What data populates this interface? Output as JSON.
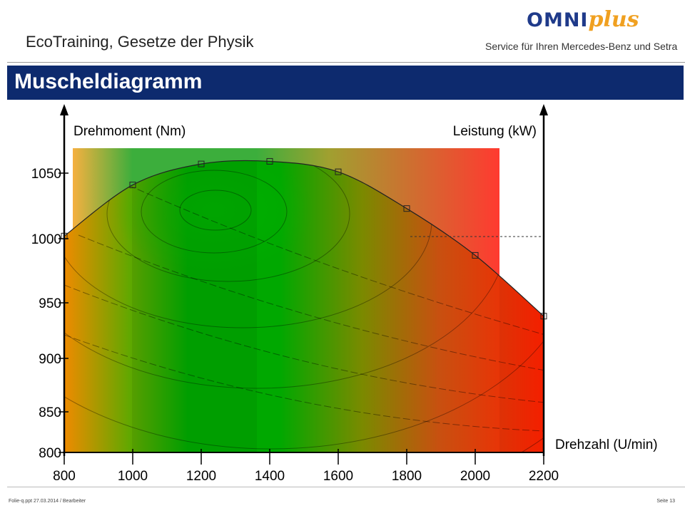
{
  "header": {
    "title": "EcoTraining, Gesetze der Physik",
    "logo_main": "OMNI",
    "logo_accent": "plus",
    "tagline": "Service für Ihren Mercedes-Benz und Setra"
  },
  "banner": {
    "title": "Muscheldiagramm"
  },
  "footer": {
    "left": "Folie-q.ppt  27.03.2014  / Bearbeiter",
    "right": "Seite 13"
  },
  "colors": {
    "banner": "#0d2a6e",
    "sweet_spot": "#00a800",
    "inefficient": "#ff2a1a"
  },
  "chart_data": {
    "type": "line",
    "title": "",
    "ylabel": "Drehmoment (Nm)",
    "ylabel_right": "Leistung (kW)",
    "xlabel": "Drehzahl (U/min)",
    "xlim": [
      800,
      2200
    ],
    "ylim": [
      800,
      1100
    ],
    "x_ticks": [
      "800",
      "1000",
      "1200",
      "1400",
      "1600",
      "1800",
      "2000",
      "2200"
    ],
    "y_ticks": [
      "800",
      "850",
      "900",
      "950",
      "1000",
      "1050"
    ],
    "grid": false,
    "series": [
      {
        "x": [
          800,
          1000,
          1200,
          1400,
          1600,
          1800,
          2000,
          2200
        ],
        "y": [
          1002,
          1041,
          1057,
          1059,
          1051,
          1023,
          987,
          938
        ]
      }
    ]
  }
}
